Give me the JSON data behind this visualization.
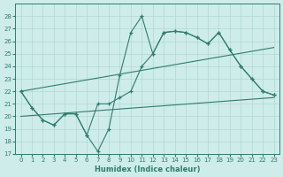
{
  "xlabel": "Humidex (Indice chaleur)",
  "xlim": [
    -0.5,
    23.5
  ],
  "ylim": [
    17,
    29
  ],
  "yticks": [
    17,
    18,
    19,
    20,
    21,
    22,
    23,
    24,
    25,
    26,
    27,
    28
  ],
  "xticks": [
    0,
    1,
    2,
    3,
    4,
    5,
    6,
    7,
    8,
    9,
    10,
    11,
    12,
    13,
    14,
    15,
    16,
    17,
    18,
    19,
    20,
    21,
    22,
    23
  ],
  "bg_color": "#ceecea",
  "line_color": "#2e7d6e",
  "grid_color": "#b0d8d4",
  "line1_x": [
    0,
    1,
    2,
    3,
    4,
    5,
    6,
    7,
    8,
    9,
    10,
    11,
    12,
    13,
    14,
    15,
    16,
    17,
    18,
    19,
    20,
    21,
    22,
    23
  ],
  "line1_y": [
    22.0,
    20.7,
    19.7,
    19.3,
    20.2,
    20.2,
    18.5,
    17.2,
    19.0,
    23.3,
    26.7,
    28.0,
    25.0,
    26.7,
    26.8,
    26.7,
    26.3,
    25.8,
    26.7,
    25.3,
    24.0,
    23.0,
    22.0,
    21.7
  ],
  "line2_x": [
    0,
    1,
    2,
    3,
    4,
    5,
    6,
    7,
    8,
    9,
    10,
    11,
    12,
    13,
    14,
    15,
    16,
    17,
    18,
    19,
    20,
    21,
    22,
    23
  ],
  "line2_y": [
    22.0,
    20.7,
    19.7,
    19.3,
    20.2,
    20.2,
    18.5,
    21.0,
    21.0,
    21.5,
    22.0,
    24.0,
    25.0,
    26.7,
    26.8,
    26.7,
    26.3,
    25.8,
    26.7,
    25.3,
    24.0,
    23.0,
    22.0,
    21.7
  ],
  "line3_x": [
    0,
    23
  ],
  "line3_y": [
    22.0,
    25.5
  ],
  "line4_x": [
    0,
    23
  ],
  "line4_y": [
    20.0,
    21.5
  ]
}
